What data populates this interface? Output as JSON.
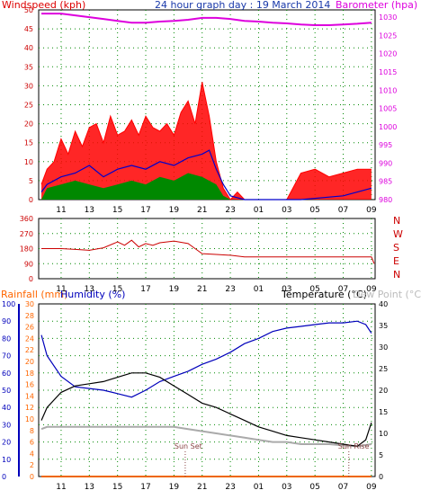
{
  "header": {
    "left_label": "Windspeed (kph)",
    "title": "24 hour graph day : 19 March 2014",
    "right_label": "Barometer (hpa)"
  },
  "colors": {
    "windspeed": "#dd0000",
    "gust": "#ff0000",
    "wind_avg": "#0000cc",
    "wind_low": "#008800",
    "barometer": "#dd00dd",
    "direction": "#cc0000",
    "direction_axis": "#cc0000",
    "humidity": "#0000bb",
    "temperature": "#000000",
    "dewpoint": "#aaaaaa",
    "rain": "#ee6600",
    "rain_label": "#ff6600",
    "humidity_label": "#0000bb",
    "dew_label": "#bbbbbb",
    "grid": "#008800",
    "frame": "#000000"
  },
  "chart_data": [
    {
      "type": "line",
      "name": "wind-barometer",
      "x_ticks": [
        "11",
        "13",
        "15",
        "17",
        "19",
        "21",
        "23",
        "01",
        "03",
        "05",
        "07",
        "09"
      ],
      "y_left_ticks": [
        0,
        5,
        10,
        15,
        20,
        25,
        30,
        35,
        40,
        45,
        50
      ],
      "y_left_range": [
        0,
        50
      ],
      "y_right_ticks": [
        980,
        985,
        990,
        995,
        1000,
        1005,
        1010,
        1015,
        1020,
        1025,
        1030
      ],
      "y_right_range": [
        980,
        1032
      ],
      "grid": true,
      "series": [
        {
          "key": "gust",
          "x": [
            9.6,
            10,
            10.5,
            11,
            11.5,
            12,
            12.5,
            13,
            13.5,
            14,
            14.5,
            15,
            15.5,
            16,
            16.5,
            17,
            17.5,
            18,
            18.5,
            19,
            19.5,
            20,
            20.5,
            21,
            21.5,
            22,
            22.5,
            23,
            23.5,
            24,
            25,
            26,
            27,
            28,
            29,
            30,
            31,
            32,
            33
          ],
          "y": [
            4,
            8,
            10,
            16,
            12,
            18,
            14,
            19,
            20,
            15,
            22,
            17,
            18,
            21,
            17,
            22,
            19,
            18,
            20,
            17,
            23,
            26,
            20,
            31,
            22,
            10,
            3,
            0,
            2,
            0,
            0,
            0,
            0,
            7,
            8,
            6,
            7,
            8,
            8
          ]
        },
        {
          "key": "wind_avg",
          "x": [
            9.6,
            10,
            11,
            12,
            13,
            14,
            15,
            16,
            17,
            18,
            19,
            20,
            21,
            21.5,
            22,
            22.5,
            23,
            24,
            28,
            31,
            32,
            33
          ],
          "y": [
            2,
            4,
            6,
            7,
            9,
            6,
            8,
            9,
            8,
            10,
            9,
            11,
            12,
            13,
            8,
            4,
            1,
            0,
            0,
            1,
            2,
            3
          ]
        },
        {
          "key": "wind_low",
          "x": [
            9.6,
            10,
            11,
            12,
            13,
            14,
            15,
            16,
            17,
            18,
            19,
            20,
            21,
            22,
            22.5,
            23
          ],
          "y": [
            0,
            3,
            4,
            5,
            4,
            3,
            4,
            5,
            4,
            6,
            5,
            7,
            6,
            4,
            1,
            0
          ]
        },
        {
          "key": "barometer",
          "x": [
            9.6,
            10,
            11,
            12,
            13,
            14,
            15,
            16,
            17,
            18,
            19,
            20,
            21,
            22,
            23,
            24,
            25,
            26,
            27,
            28,
            29,
            30,
            31,
            32,
            33
          ],
          "y": [
            1031,
            1031,
            1031,
            1030.5,
            1030,
            1029.5,
            1029,
            1028.5,
            1028.5,
            1028.8,
            1029,
            1029.3,
            1029.8,
            1029.8,
            1029.5,
            1029,
            1028.8,
            1028.5,
            1028.3,
            1028,
            1027.8,
            1027.8,
            1028,
            1028.2,
            1028.5
          ]
        }
      ]
    },
    {
      "type": "line",
      "name": "wind-direction",
      "x_ticks": [
        "11",
        "13",
        "15",
        "17",
        "19",
        "21",
        "23",
        "01",
        "03",
        "05",
        "07",
        "09"
      ],
      "y_ticks": [
        0,
        90,
        180,
        270,
        360
      ],
      "y_range": [
        0,
        360
      ],
      "compass_labels": [
        "N",
        "W",
        "S",
        "E",
        "N"
      ],
      "series": [
        {
          "key": "direction",
          "x": [
            9.6,
            11,
            12,
            13,
            14,
            15,
            15.5,
            16,
            16.5,
            17,
            17.5,
            18,
            19,
            20,
            20.5,
            21,
            22,
            23,
            24,
            26,
            28,
            30,
            32,
            33,
            33.2
          ],
          "y": [
            180,
            180,
            175,
            170,
            185,
            220,
            200,
            230,
            190,
            210,
            200,
            215,
            225,
            210,
            180,
            150,
            145,
            140,
            130,
            130,
            130,
            130,
            130,
            130,
            90
          ]
        }
      ]
    },
    {
      "type": "line",
      "name": "temperature-humidity",
      "header": {
        "rainfall_label": "Rainfall (mm)",
        "humidity_label": "Humidity (%)",
        "temperature_label": "Temperature (°C)",
        "dew_label": "Dew Point (°C)"
      },
      "x_ticks": [
        "11",
        "13",
        "15",
        "17",
        "19",
        "21",
        "23",
        "01",
        "03",
        "05",
        "07",
        "09"
      ],
      "y_humidity_ticks": [
        0,
        10,
        20,
        30,
        40,
        50,
        60,
        70,
        80,
        90,
        100
      ],
      "y_humidity_range": [
        0,
        100
      ],
      "y_rain_ticks": [
        0,
        2,
        4,
        6,
        8,
        10,
        12,
        14,
        16,
        18,
        20,
        22,
        24,
        26,
        28,
        30
      ],
      "y_rain_range": [
        0,
        30
      ],
      "y_temp_ticks": [
        0,
        5,
        10,
        15,
        20,
        25,
        30,
        35,
        40
      ],
      "y_temp_range": [
        0,
        40
      ],
      "annotations": [
        {
          "text": "Sun Set",
          "x": 19.8
        },
        {
          "text": "Sun Rise",
          "x": 31.4
        }
      ],
      "series": [
        {
          "key": "humidity",
          "x": [
            9.6,
            10,
            11,
            12,
            13,
            14,
            15,
            16,
            17,
            18,
            19,
            20,
            21,
            22,
            23,
            24,
            25,
            26,
            27,
            28,
            29,
            30,
            31,
            32,
            32.6,
            33
          ],
          "y": [
            82,
            70,
            58,
            52,
            51,
            50,
            48,
            46,
            50,
            55,
            58,
            61,
            65,
            68,
            72,
            77,
            80,
            84,
            86,
            87,
            88,
            89,
            89,
            90,
            88,
            83
          ]
        },
        {
          "key": "temperature",
          "x": [
            9.6,
            10,
            11,
            12,
            13,
            14,
            15,
            16,
            17,
            18,
            19,
            20,
            21,
            22,
            23,
            24,
            25,
            26,
            27,
            28,
            29,
            30,
            31,
            32,
            32.6,
            33
          ],
          "y": [
            13,
            16,
            19.5,
            21,
            21.5,
            22,
            23,
            24,
            24,
            23,
            21,
            19,
            17,
            16,
            14.5,
            13,
            11.5,
            10.5,
            9.5,
            9,
            8.5,
            8,
            7.5,
            7,
            8.5,
            12.5
          ]
        },
        {
          "key": "dewpoint",
          "x": [
            9.6,
            10,
            11,
            12,
            13,
            14,
            15,
            16,
            17,
            18,
            19,
            20,
            21,
            22,
            23,
            24,
            25,
            26,
            27,
            28,
            29,
            30,
            31,
            32,
            33
          ],
          "y": [
            11,
            11.5,
            11.5,
            11.5,
            11.5,
            11.5,
            11.5,
            11.5,
            11.5,
            11.5,
            11.5,
            11,
            10.5,
            10,
            9.5,
            9,
            8.5,
            8,
            8,
            7.5,
            7.5,
            7.5,
            7.2,
            7,
            7.5
          ]
        },
        {
          "key": "rain",
          "x": [
            9.6,
            33
          ],
          "y": [
            0,
            0
          ]
        }
      ]
    }
  ]
}
